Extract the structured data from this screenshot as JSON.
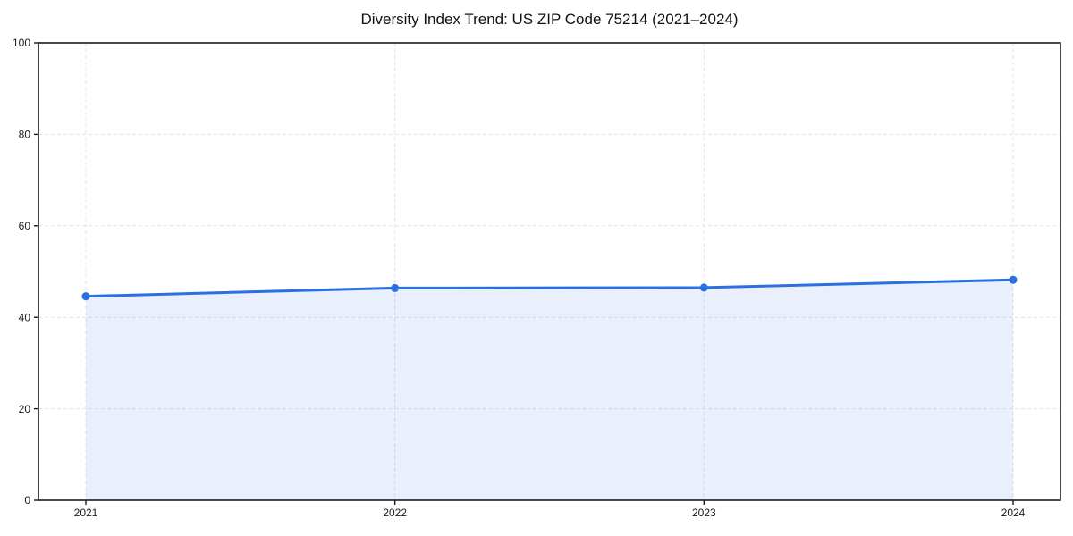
{
  "chart_data": {
    "type": "area",
    "title": "Diversity Index Trend: US ZIP Code 75214 (2021–2024)",
    "categories": [
      "2021",
      "2022",
      "2023",
      "2024"
    ],
    "series": [
      {
        "name": "Diversity Index",
        "values": [
          44.6,
          46.4,
          46.5,
          48.2
        ]
      }
    ],
    "xlabel": "",
    "ylabel": "",
    "ylim": [
      0,
      100
    ],
    "yticks": [
      0,
      20,
      40,
      60,
      80,
      100
    ],
    "grid": true,
    "legend": "none",
    "marker_style": "filled-circle",
    "colors": {
      "line": "#2a70e0",
      "marker": "#2a70e0",
      "area_fill": "rgba(43,112,224,0.10)",
      "grid": "#e3e3e3",
      "spine": "#1a1a1a",
      "tick_text": "#1c1c1c",
      "title_text": "#111111",
      "background": "#ffffff"
    }
  }
}
